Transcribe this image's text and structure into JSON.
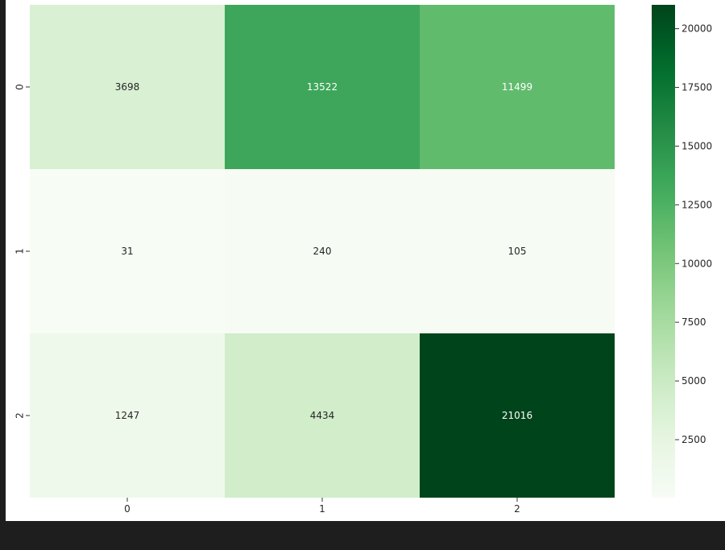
{
  "chart_data": {
    "type": "heatmap",
    "title": "",
    "xlabel": "",
    "ylabel": "",
    "x_categories": [
      "0",
      "1",
      "2"
    ],
    "y_categories": [
      "0",
      "1",
      "2"
    ],
    "values": [
      [
        3698,
        13522,
        11499
      ],
      [
        31,
        240,
        105
      ],
      [
        1247,
        4434,
        21016
      ]
    ],
    "colormap": "Greens",
    "color_range": [
      31,
      21016
    ],
    "colorbar_ticks": [
      2500,
      5000,
      7500,
      10000,
      12500,
      15000,
      17500,
      20000
    ],
    "colorbar_tick_labels": [
      "2500",
      "5000",
      "7500",
      "10000",
      "12500",
      "15000",
      "17500",
      "20000"
    ],
    "annotation_dark_text_color": "#262626",
    "annotation_light_text_color": "#ffffff"
  }
}
